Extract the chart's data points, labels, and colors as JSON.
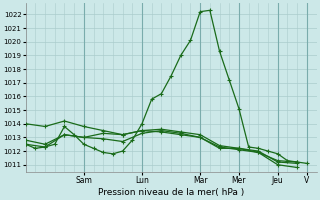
{
  "bg_color": "#cce8e8",
  "grid_color": "#aacccc",
  "line_color": "#1a6b1a",
  "xlabel": "Pression niveau de la mer( hPa )",
  "ylim": [
    1010.5,
    1022.8
  ],
  "yticks": [
    1011,
    1012,
    1013,
    1014,
    1015,
    1016,
    1017,
    1018,
    1019,
    1020,
    1021,
    1022
  ],
  "xtick_labels": [
    "Sam",
    "Lun",
    "Mar",
    "Mer",
    "Jeu",
    "V"
  ],
  "xtick_positions": [
    6,
    12,
    18,
    22,
    26,
    29
  ],
  "xlim": [
    0,
    30
  ],
  "series": [
    {
      "x": [
        0,
        1,
        2,
        3,
        4,
        5,
        6,
        7,
        8,
        9,
        10,
        11,
        12,
        13,
        14,
        15,
        16,
        17,
        18,
        19,
        20,
        21,
        22,
        23,
        24,
        25,
        26,
        27,
        28,
        29
      ],
      "y": [
        1012.5,
        1012.2,
        1012.3,
        1012.5,
        1013.8,
        1013.2,
        1012.5,
        1012.2,
        1011.9,
        1011.8,
        1012.0,
        1012.8,
        1014.0,
        1015.8,
        1016.2,
        1017.5,
        1019.0,
        1020.1,
        1022.2,
        1022.3,
        1019.3,
        1017.2,
        1015.1,
        1012.3,
        1012.2,
        1012.0,
        1011.8,
        1011.3,
        1011.2,
        1011.1
      ]
    },
    {
      "x": [
        0,
        2,
        4,
        6,
        8,
        10,
        12,
        14,
        16,
        18,
        20,
        22,
        24,
        26,
        28
      ],
      "y": [
        1014.0,
        1013.8,
        1014.2,
        1013.8,
        1013.5,
        1013.2,
        1013.5,
        1013.6,
        1013.4,
        1013.2,
        1012.4,
        1012.2,
        1012.0,
        1011.2,
        1011.1
      ]
    },
    {
      "x": [
        0,
        2,
        4,
        6,
        8,
        10,
        12,
        14,
        16,
        18,
        20,
        22,
        24,
        26,
        28
      ],
      "y": [
        1012.8,
        1012.5,
        1013.2,
        1013.0,
        1013.3,
        1013.2,
        1013.5,
        1013.4,
        1013.2,
        1013.0,
        1012.2,
        1012.2,
        1011.9,
        1011.0,
        1010.8
      ]
    },
    {
      "x": [
        0,
        2,
        4,
        6,
        8,
        10,
        12,
        14,
        16,
        18,
        20,
        22,
        24,
        26,
        28
      ],
      "y": [
        1012.5,
        1012.3,
        1013.2,
        1013.0,
        1012.9,
        1012.7,
        1013.3,
        1013.5,
        1013.3,
        1013.0,
        1012.3,
        1012.1,
        1011.9,
        1011.3,
        1011.2
      ]
    }
  ]
}
